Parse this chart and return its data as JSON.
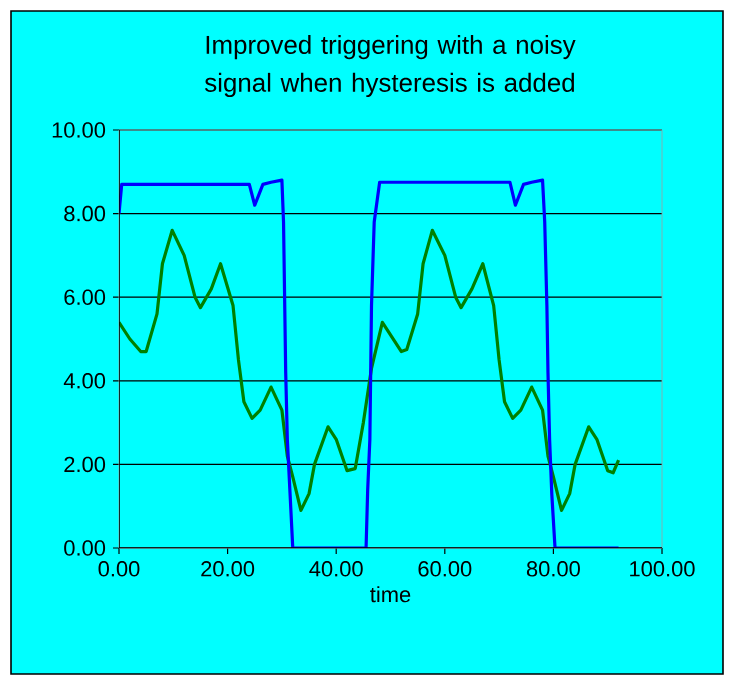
{
  "chart_data": {
    "type": "line",
    "title": "Improved triggering with a noisy signal when hysteresis is added",
    "xlabel": "time",
    "xlim": [
      0,
      100
    ],
    "ylim": [
      0,
      10
    ],
    "xticks": [
      {
        "value": 0,
        "label": "0.00"
      },
      {
        "value": 20,
        "label": "20.00"
      },
      {
        "value": 40,
        "label": "40.00"
      },
      {
        "value": 60,
        "label": "60.00"
      },
      {
        "value": 80,
        "label": "80.00"
      },
      {
        "value": 100,
        "label": "100.00"
      }
    ],
    "yticks": [
      {
        "value": 0,
        "label": "0.00"
      },
      {
        "value": 2,
        "label": "2.00"
      },
      {
        "value": 4,
        "label": "4.00"
      },
      {
        "value": 6,
        "label": "6.00"
      },
      {
        "value": 8,
        "label": "8.00"
      },
      {
        "value": 10,
        "label": "10.00"
      }
    ],
    "grid": "y",
    "marker": "none",
    "line_style": "solid",
    "series": [
      {
        "color": "#008000",
        "x": [
          0,
          2,
          4,
          5,
          7,
          8,
          9.8,
          12,
          14,
          15,
          17,
          18.7,
          21,
          22,
          23,
          24.5,
          26,
          28,
          30,
          31,
          32,
          33.5,
          35,
          36,
          38.5,
          40,
          42,
          43.5,
          45,
          46.5,
          48.5,
          50,
          52,
          53,
          55,
          56,
          57.7,
          60,
          62,
          63,
          65,
          67,
          69,
          70,
          71,
          72.5,
          74,
          76,
          78,
          79,
          80,
          81.5,
          83,
          84,
          86.5,
          88,
          90,
          91,
          92
        ],
        "values": [
          5.4,
          5.0,
          4.7,
          4.7,
          5.6,
          6.8,
          7.6,
          7.0,
          6.0,
          5.75,
          6.2,
          6.8,
          5.8,
          4.5,
          3.5,
          3.1,
          3.3,
          3.85,
          3.3,
          2.2,
          1.7,
          0.9,
          1.3,
          2.0,
          2.9,
          2.6,
          1.85,
          1.9,
          3.0,
          4.3,
          5.4,
          5.1,
          4.7,
          4.75,
          5.6,
          6.8,
          7.6,
          7.0,
          6.0,
          5.75,
          6.2,
          6.8,
          5.8,
          4.5,
          3.5,
          3.1,
          3.3,
          3.85,
          3.3,
          2.2,
          1.7,
          0.9,
          1.3,
          2.0,
          2.9,
          2.6,
          1.85,
          1.8,
          2.1
        ]
      },
      {
        "color": "#0000ff",
        "x": [
          0,
          0.5,
          24,
          25,
          26.5,
          28,
          30,
          30.3,
          30.7,
          31,
          31.5,
          32,
          45.5,
          45.8,
          46.2,
          46.5,
          47,
          48,
          72,
          73,
          74.5,
          76,
          78,
          78.4,
          78.8,
          79,
          79.3,
          79.7,
          80.3,
          92
        ],
        "values": [
          8.0,
          8.7,
          8.7,
          8.2,
          8.7,
          8.75,
          8.8,
          7.8,
          4.2,
          2.6,
          1.3,
          0,
          0,
          1.4,
          2.6,
          5.8,
          7.8,
          8.75,
          8.75,
          8.2,
          8.7,
          8.75,
          8.8,
          7.8,
          5.8,
          4.2,
          2.6,
          1.3,
          0,
          0
        ]
      }
    ]
  }
}
